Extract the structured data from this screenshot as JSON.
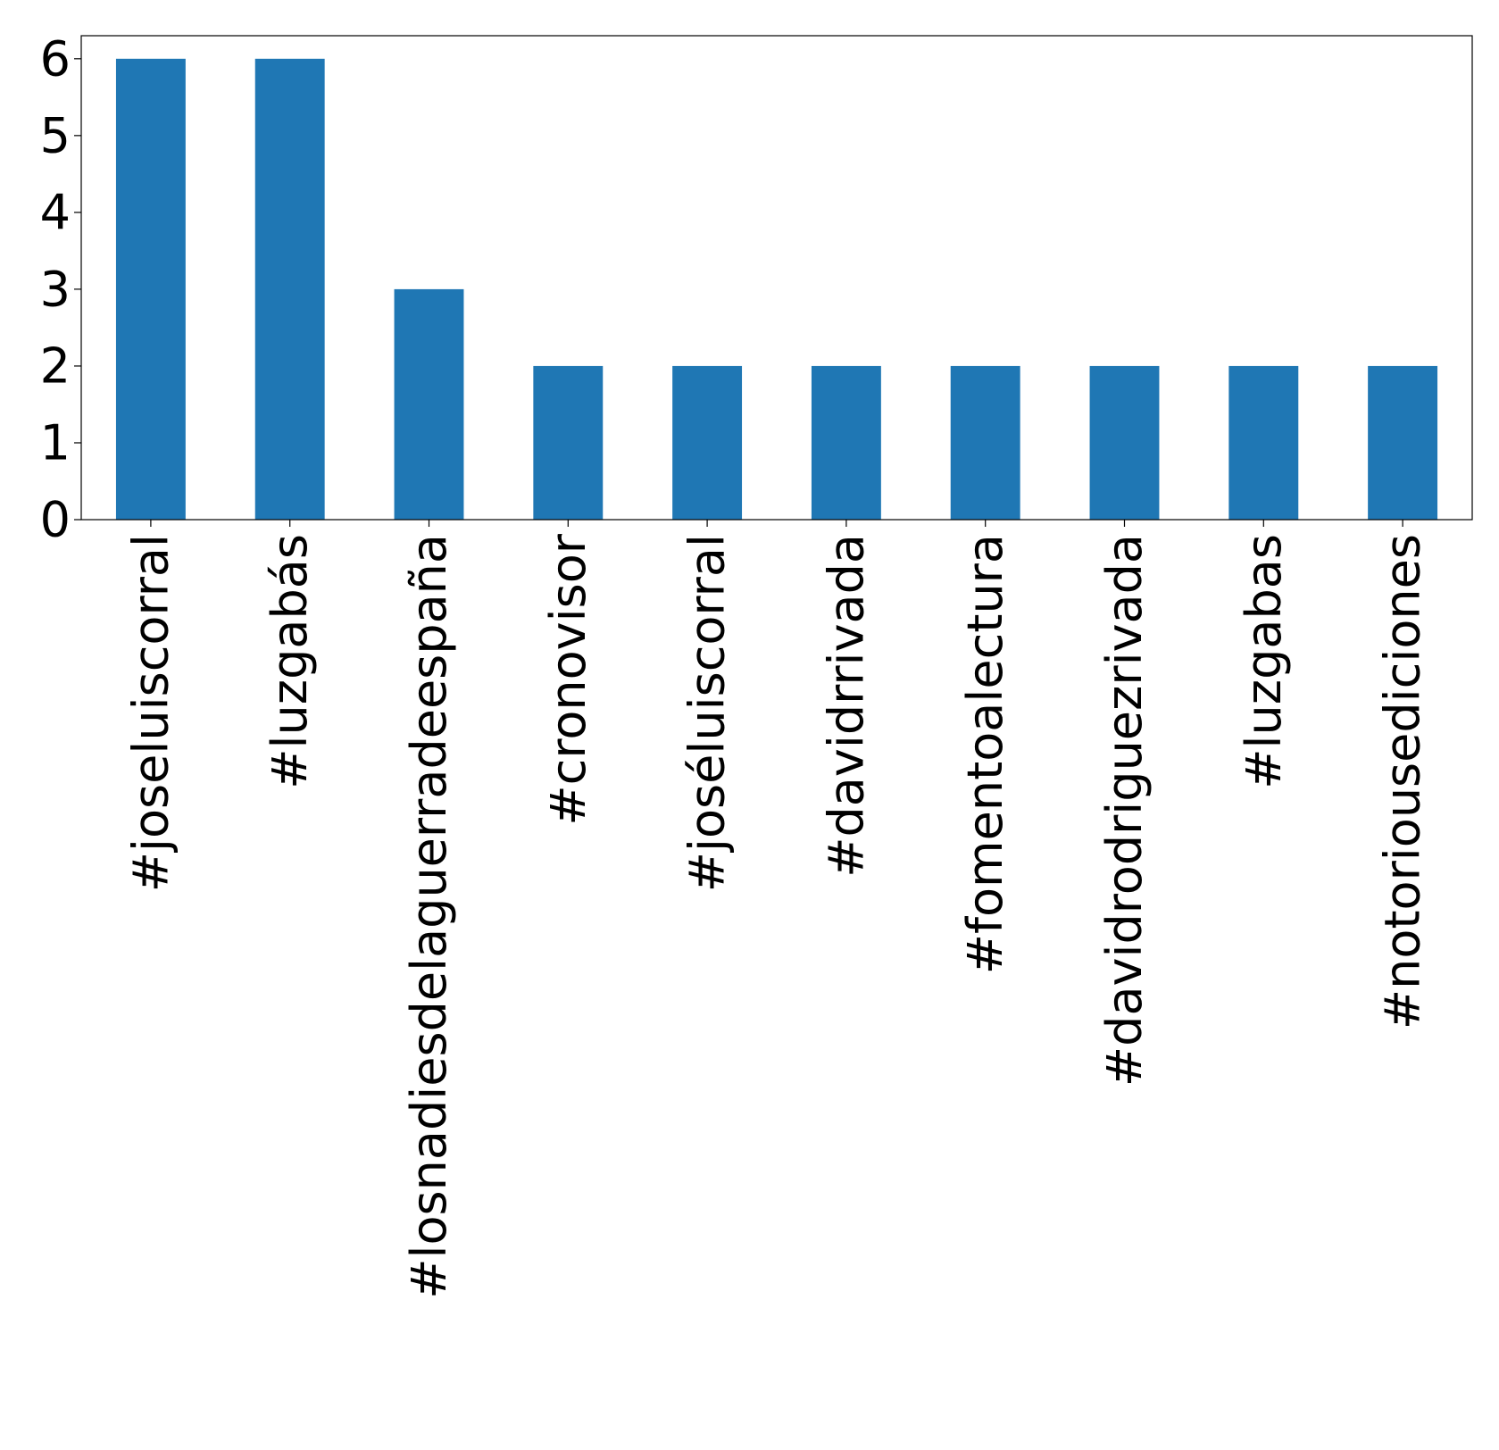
{
  "chart_data": {
    "type": "bar",
    "title": "",
    "xlabel": "",
    "ylabel": "",
    "categories": [
      "#joseluiscorral",
      "#luzgabás",
      "#losnadiesdelaguerradeespaña",
      "#cronovisor",
      "#joséluiscorral",
      "#davidrrivada",
      "#fomentoalectura",
      "#davidrodriguezrivada",
      "#luzgabas",
      "#notoriousediciones"
    ],
    "values": [
      6,
      6,
      3,
      2,
      2,
      2,
      2,
      2,
      2,
      2
    ],
    "ylim": [
      0,
      6.3
    ],
    "yticks": [
      0,
      1,
      2,
      3,
      4,
      5,
      6
    ],
    "grid": false,
    "legend": "none",
    "bar_color": "#1f77b4"
  }
}
